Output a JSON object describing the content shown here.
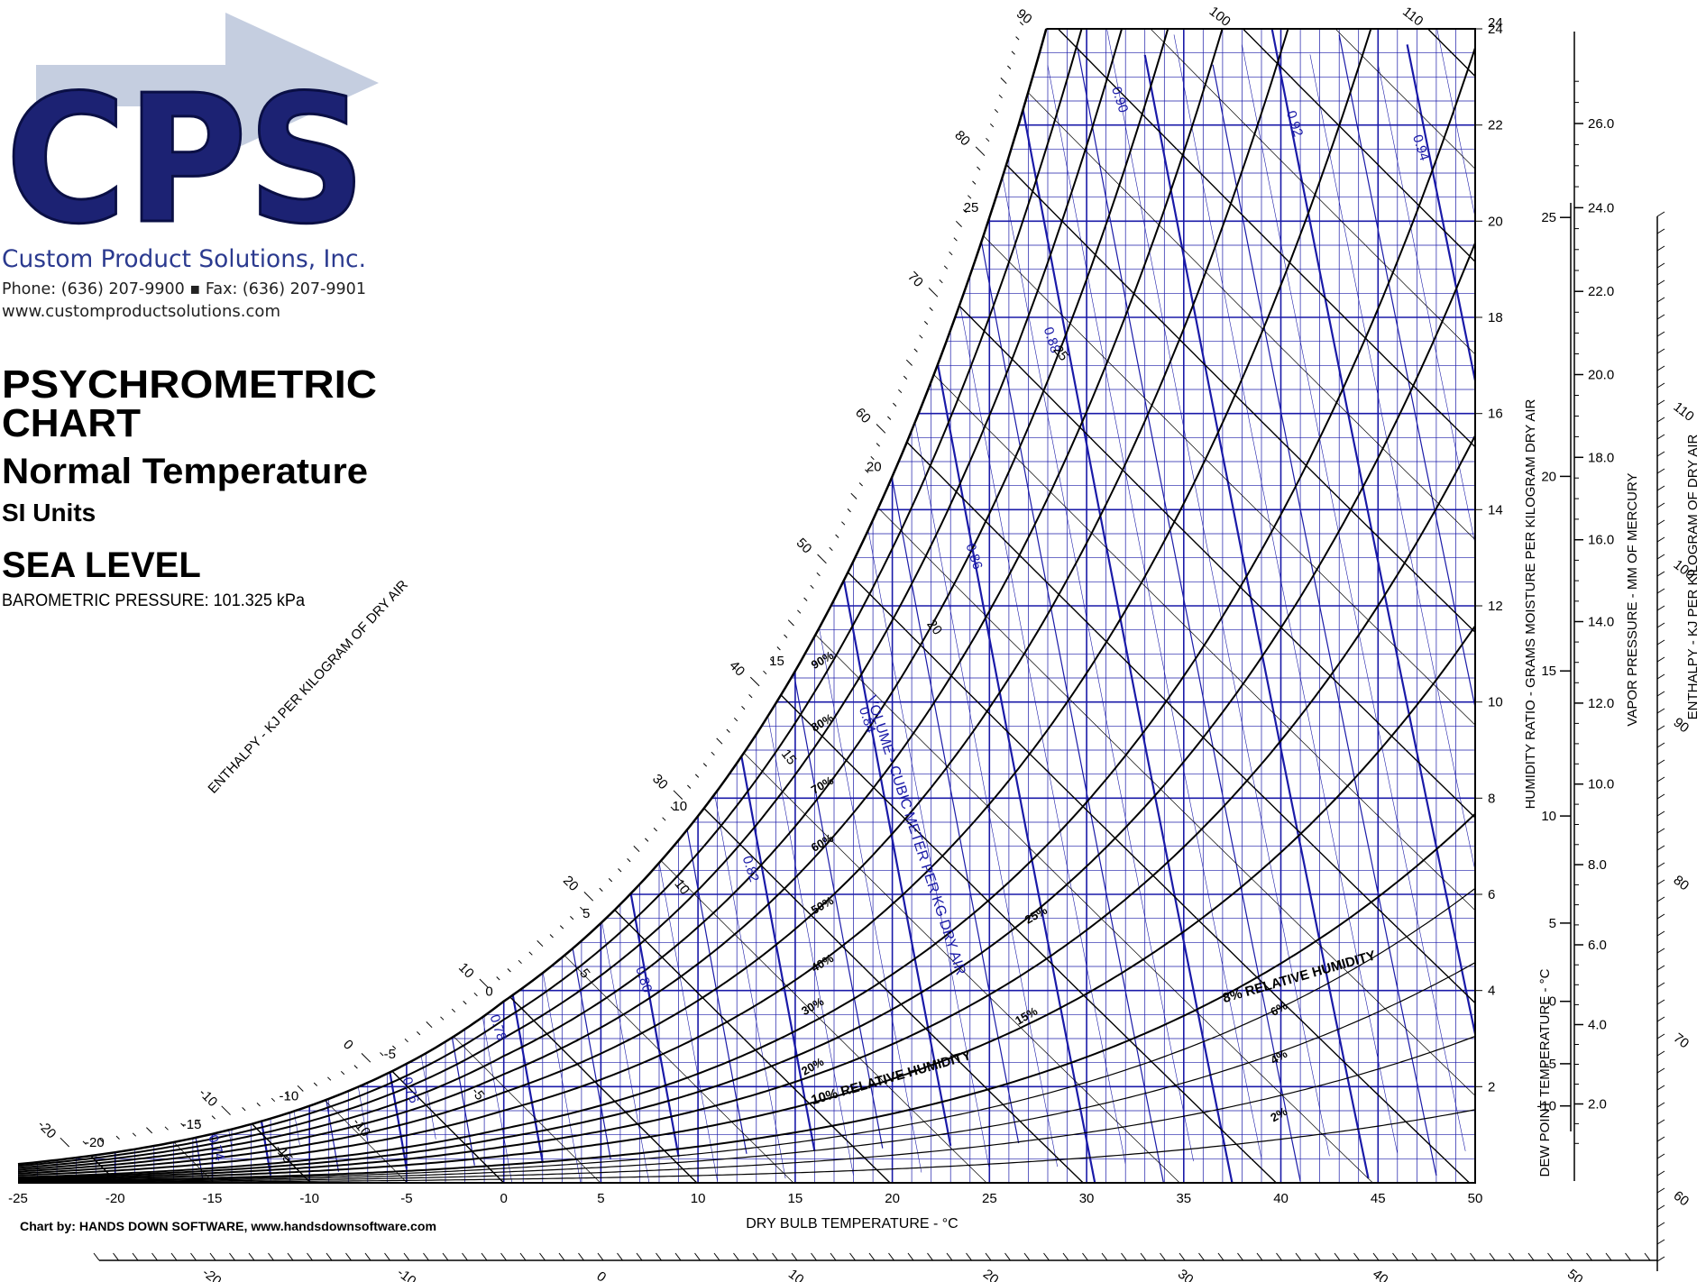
{
  "header": {
    "company": "Custom Product Solutions, Inc.",
    "logo_letters": "CPS",
    "contact": "Phone: (636) 207-9900  ▪  Fax: (636) 207-9901",
    "website": "www.customproductsolutions.com",
    "title_line1": "PSYCHROMETRIC",
    "title_line2": "CHART",
    "subtitle": "Normal Temperature",
    "units": "SI Units",
    "elevation": "SEA LEVEL",
    "pressure": "BAROMETRIC PRESSURE: 101.325 kPa"
  },
  "footer": {
    "credit": "Chart by: HANDS DOWN SOFTWARE, www.handsdownsoftware.com"
  },
  "colors": {
    "accent_blue": "#1a1aa8",
    "line_black": "#000000",
    "logo_navy": "#1c2273",
    "logo_arrow": "#c5cee0"
  },
  "chart_data": {
    "type": "line",
    "title": "PSYCHROMETRIC CHART",
    "xlabel": "DRY BULB TEMPERATURE - °C",
    "ylabel": "HUMIDITY RATIO - GRAMS MOISTURE PER KILOGRAM DRY AIR",
    "xlim": [
      -25,
      50
    ],
    "ylim": [
      0,
      24
    ],
    "x_ticks": [
      "-25",
      "-20",
      "-15",
      "-10",
      "-5",
      "0",
      "5",
      "10",
      "15",
      "20",
      "25",
      "30",
      "35",
      "40",
      "45",
      "50"
    ],
    "y_ticks": [
      "2",
      "4",
      "6",
      "8",
      "10",
      "12",
      "14",
      "16",
      "18",
      "20",
      "22",
      "24"
    ],
    "relative_humidity_percent": [
      2,
      4,
      6,
      8,
      10,
      15,
      20,
      25,
      30,
      40,
      50,
      60,
      70,
      80,
      90,
      100
    ],
    "rh_labels": [
      "2%",
      "4%",
      "6%",
      "8% RELATIVE HUMIDITY",
      "10% RELATIVE HUMIDITY",
      "15%",
      "20%",
      "25%",
      "30%",
      "40%",
      "50%",
      "60%",
      "70%",
      "80%",
      "90%"
    ],
    "saturation_temp_labels": [
      "-20",
      "-15",
      "-10",
      "-5",
      "0",
      "5",
      "10",
      "15",
      "20",
      "25"
    ],
    "wet_bulb_labels": [
      "-15",
      "-10",
      "-5",
      "5",
      "10",
      "15",
      "20",
      "25"
    ],
    "specific_volume": {
      "label": "VOLUME - CUBIC METER PER KG DRY AIR",
      "values": [
        0.74,
        0.76,
        0.78,
        0.8,
        0.82,
        0.84,
        0.86,
        0.88,
        0.9,
        0.92,
        0.94
      ],
      "labels": [
        "0.74",
        "0.76",
        "0.78",
        "0.80",
        "0.82",
        "0.84",
        "0.86",
        "0.88",
        "0.90",
        "0.92",
        "0.94"
      ]
    },
    "enthalpy": {
      "label": "ENTHALPY - KJ PER KILOGRAM OF DRY AIR",
      "values": [
        -20,
        -10,
        0,
        10,
        20,
        30,
        40,
        50,
        60,
        70,
        80,
        90,
        100,
        110
      ],
      "top_labels": [
        "90",
        "100",
        "110"
      ],
      "right_labels": [
        "60",
        "70",
        "80",
        "90",
        "100",
        "110"
      ],
      "bottom_labels": [
        "-20",
        "-10",
        "0",
        "10",
        "20",
        "30",
        "40",
        "50"
      ]
    },
    "vapor_pressure": {
      "label": "VAPOR PRESSURE - MM OF MERCURY",
      "ticks": [
        "2.0",
        "4.0",
        "6.0",
        "8.0",
        "10.0",
        "12.0",
        "14.0",
        "16.0",
        "18.0",
        "20.0",
        "22.0",
        "24.0",
        "26.0"
      ]
    },
    "dew_point": {
      "label": "DEW POINT TEMPERATURE - °C",
      "ticks": [
        "-10",
        "-5",
        "0",
        "5",
        "10",
        "15",
        "20",
        "25"
      ]
    },
    "grid": true
  }
}
